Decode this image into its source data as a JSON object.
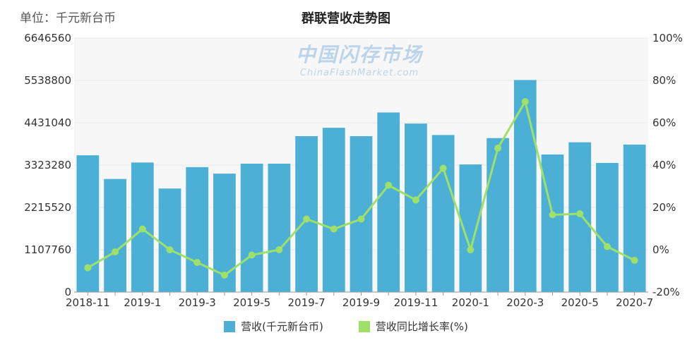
{
  "unit_label": "单位：千元新台币",
  "watermark": {
    "cn": "中国闪存市场",
    "en": "ChinaFlashMarket.com"
  },
  "colors": {
    "bar": "#4bafd6",
    "line": "#9ee06a",
    "grid": "#e8e8e8",
    "plot_bg": "#f7f7f7"
  },
  "chart_data": {
    "type": "bar",
    "title": "群联营收走势图",
    "categories": [
      "2018-11",
      "2018-12",
      "2019-1",
      "2019-2",
      "2019-3",
      "2019-4",
      "2019-5",
      "2019-6",
      "2019-7",
      "2019-8",
      "2019-9",
      "2019-10",
      "2019-11",
      "2019-12",
      "2020-1",
      "2020-2",
      "2020-3",
      "2020-4",
      "2020-5",
      "2020-6",
      "2020-7"
    ],
    "x_tick_labels": [
      "2018-11",
      "2019-1",
      "2019-3",
      "2019-5",
      "2019-7",
      "2019-9",
      "2019-11",
      "2020-1",
      "2020-3",
      "2020-5",
      "2020-7"
    ],
    "series": [
      {
        "name": "营收(千元新台币)",
        "type": "bar",
        "axis": "left",
        "values": [
          3580000,
          2960000,
          3390000,
          2710000,
          3270000,
          3100000,
          3360000,
          3360000,
          4080000,
          4300000,
          4080000,
          4700000,
          4410000,
          4110000,
          3340000,
          4030000,
          5550000,
          3600000,
          3920000,
          3380000,
          3860000
        ]
      },
      {
        "name": "营收同比增长率(%)",
        "type": "line",
        "axis": "right",
        "values": [
          -8.5,
          -1,
          9.8,
          0,
          -6,
          -12,
          -2.5,
          0,
          14.5,
          9.8,
          14.5,
          30.5,
          23.5,
          38.5,
          0,
          48,
          70,
          16.5,
          17,
          1.5,
          -5
        ]
      }
    ],
    "y_left": {
      "min": 0,
      "max": 6646560,
      "ticks": [
        "0",
        "1107760",
        "2215520",
        "3323280",
        "4431040",
        "5538800",
        "6646560"
      ]
    },
    "y_right": {
      "min": -20,
      "max": 100,
      "ticks": [
        "-20%",
        "0%",
        "20%",
        "40%",
        "60%",
        "80%",
        "100%"
      ]
    },
    "grid": true,
    "legend_position": "bottom"
  }
}
